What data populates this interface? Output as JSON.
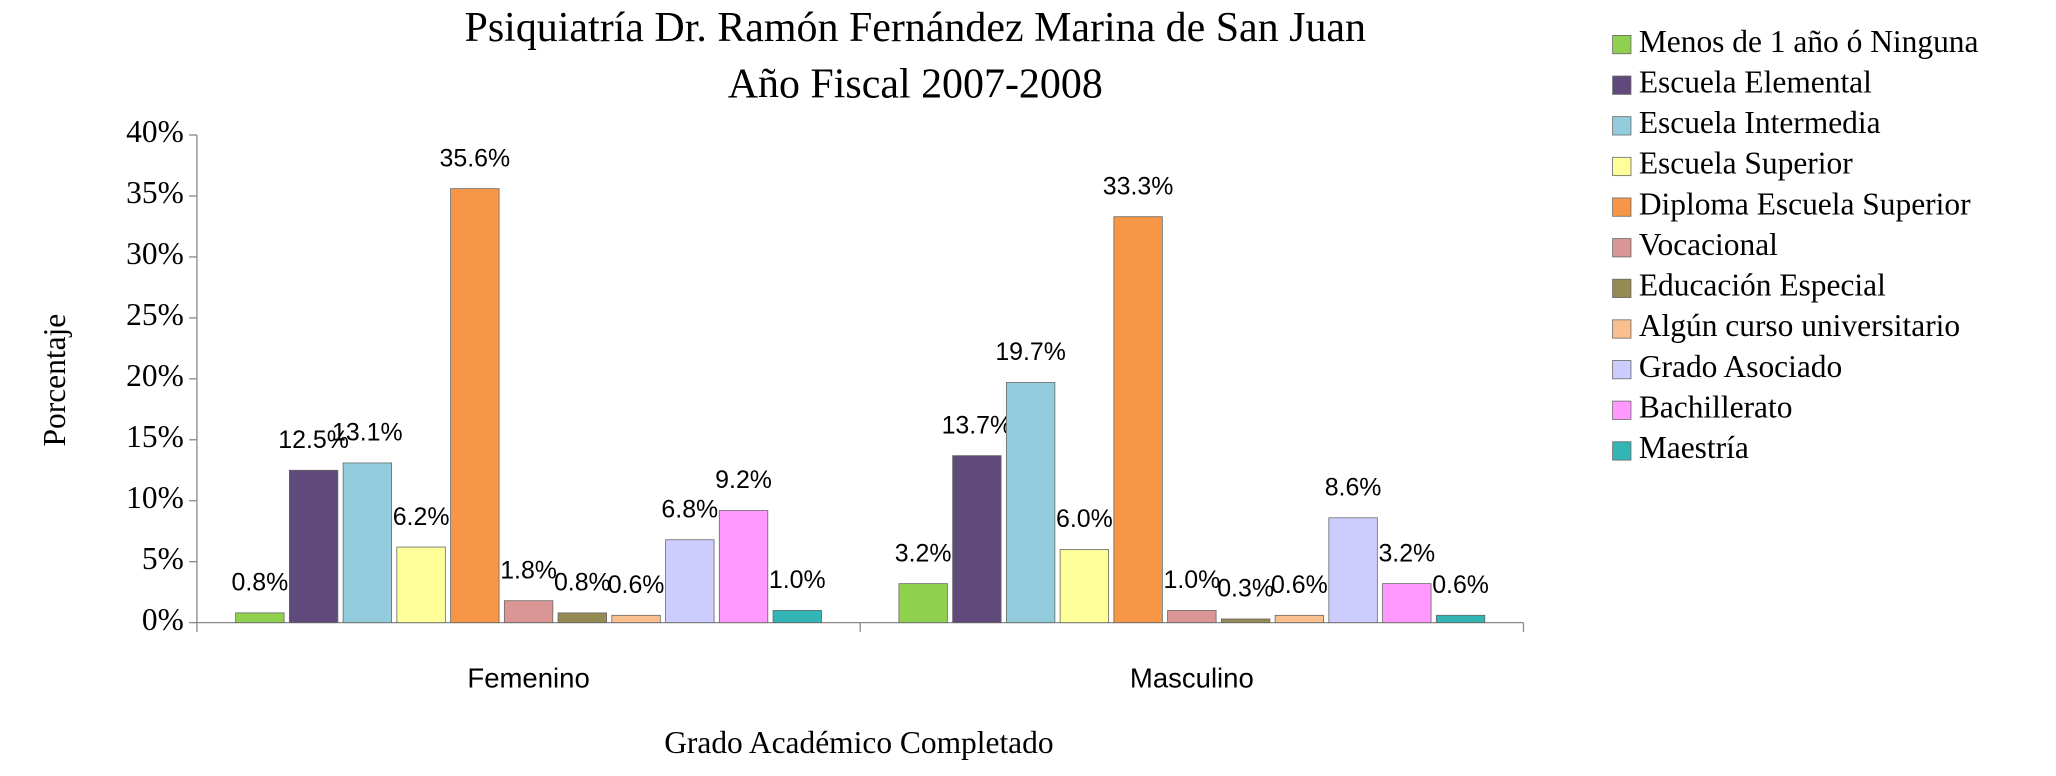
{
  "chart_data": {
    "type": "bar",
    "title": [
      "Psiquiatría Dr. Ramón Fernández Marina de San Juan",
      "Año Fiscal 2007-2008"
    ],
    "x_label": "Grado Académico Completado",
    "y_label": "Porcentaje",
    "categories": [
      "Femenino",
      "Masculino"
    ],
    "ylim": [
      0,
      40
    ],
    "yticks": [
      {
        "value": 0,
        "label": "0%"
      },
      {
        "value": 5,
        "label": "5%"
      },
      {
        "value": 10,
        "label": "10%"
      },
      {
        "value": 15,
        "label": "15%"
      },
      {
        "value": 20,
        "label": "20%"
      },
      {
        "value": 25,
        "label": "25%"
      },
      {
        "value": 30,
        "label": "30%"
      },
      {
        "value": 35,
        "label": "35%"
      },
      {
        "value": 40,
        "label": "40%"
      }
    ],
    "legend": "right",
    "series": [
      {
        "name": "Menos de 1 año ó Ninguna",
        "color": "#8fd14f",
        "values": [
          0.8,
          3.2
        ],
        "value_labels": [
          "0.8%",
          "3.2%"
        ]
      },
      {
        "name": "Escuela Elemental",
        "color": "#604a7b",
        "values": [
          12.5,
          13.7
        ],
        "value_labels": [
          "12.5%",
          "13.7%"
        ]
      },
      {
        "name": "Escuela Intermedia",
        "color": "#93cddd",
        "values": [
          13.1,
          19.7
        ],
        "value_labels": [
          "13.1%",
          "19.7%"
        ]
      },
      {
        "name": "Escuela Superior",
        "color": "#ffff99",
        "values": [
          6.2,
          6.0
        ],
        "value_labels": [
          "6.2%",
          "6.0%"
        ]
      },
      {
        "name": "Diploma Escuela Superior",
        "color": "#f79646",
        "values": [
          35.6,
          33.3
        ],
        "value_labels": [
          "35.6%",
          "33.3%"
        ]
      },
      {
        "name": "Vocacional",
        "color": "#d99694",
        "values": [
          1.8,
          1.0
        ],
        "value_labels": [
          "1.8%",
          "1.0%"
        ]
      },
      {
        "name": "Educación Especial",
        "color": "#948a54",
        "values": [
          0.8,
          0.3
        ],
        "value_labels": [
          "0.8%",
          "0.3%"
        ]
      },
      {
        "name": "Algún curso universitario",
        "color": "#fabf8f",
        "values": [
          0.6,
          0.6
        ],
        "value_labels": [
          "0.6%",
          "0.6%"
        ]
      },
      {
        "name": "Grado Asociado",
        "color": "#ccccff",
        "values": [
          6.8,
          8.6
        ],
        "value_labels": [
          "6.8%",
          "8.6%"
        ]
      },
      {
        "name": "Bachillerato",
        "color": "#ff99ff",
        "values": [
          9.2,
          3.2
        ],
        "value_labels": [
          "9.2%",
          "3.2%"
        ]
      },
      {
        "name": "Maestría",
        "color": "#31b5b5",
        "values": [
          1.0,
          0.6
        ],
        "value_labels": [
          "1.0%",
          "0.6%"
        ]
      }
    ]
  }
}
